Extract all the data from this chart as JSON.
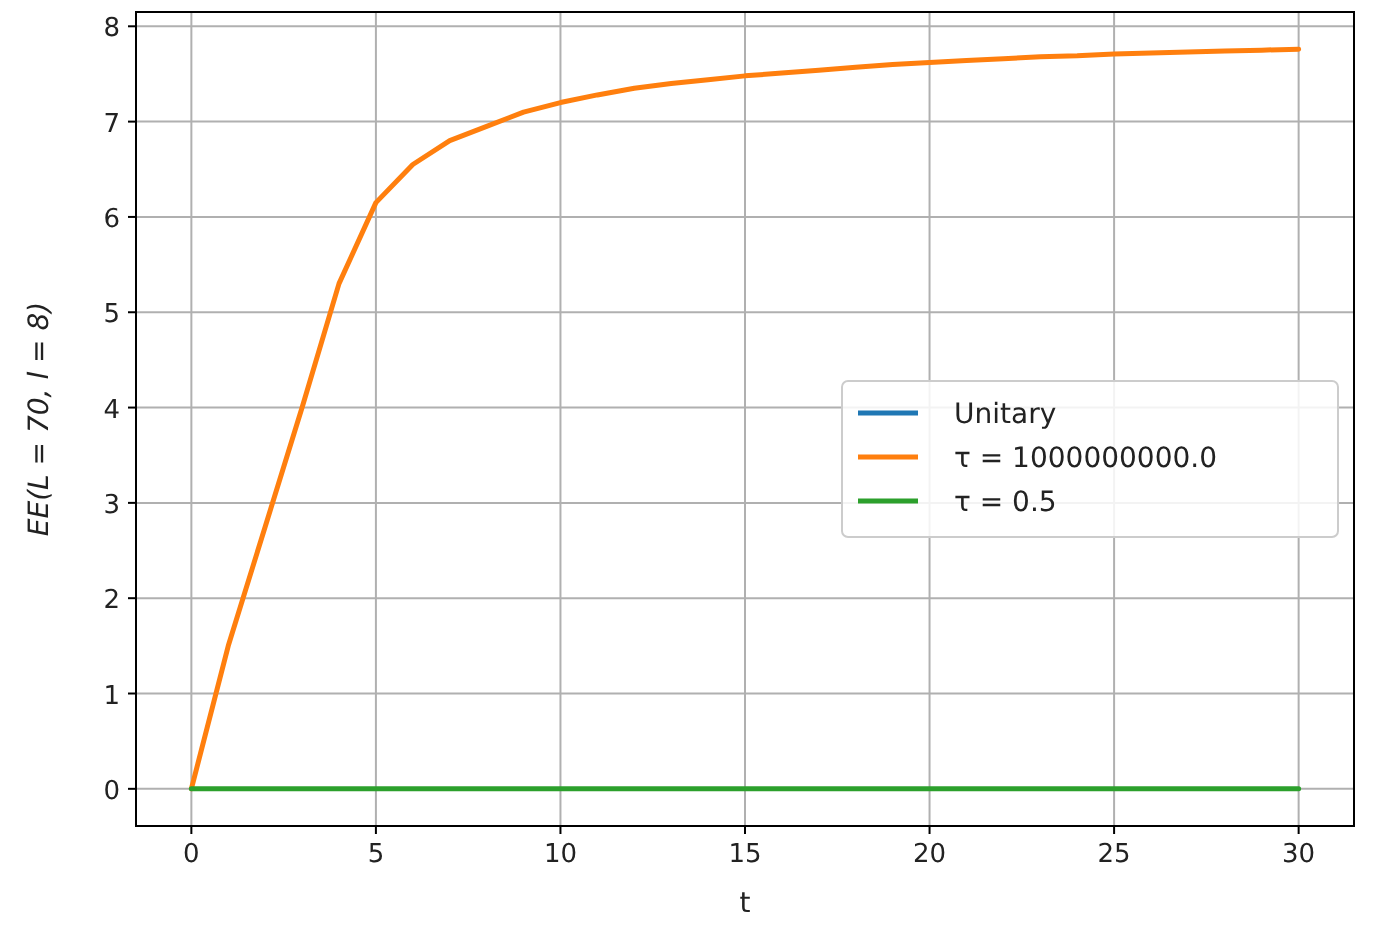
{
  "chart_data": {
    "type": "line",
    "xlabel": "t",
    "ylabel": "EE(L = 70, l = 8)",
    "x": [
      0,
      1,
      2,
      3,
      4,
      5,
      6,
      7,
      8,
      9,
      10,
      11,
      12,
      13,
      14,
      15,
      16,
      17,
      18,
      19,
      20,
      21,
      22,
      23,
      24,
      25,
      26,
      27,
      28,
      29,
      30
    ],
    "series": [
      {
        "name": "Unitary",
        "color": "#1f77b4",
        "values": [
          null,
          null,
          null,
          null,
          null,
          null,
          null,
          null,
          null,
          null,
          null,
          null,
          null,
          null,
          null,
          null,
          null,
          null,
          null,
          null,
          null,
          null,
          null,
          null,
          null,
          null,
          null,
          null,
          null,
          null,
          null
        ]
      },
      {
        "name": "τ = 1000000000.0",
        "color": "#ff7f0e",
        "values": [
          0,
          1.5,
          2.75,
          4.0,
          5.3,
          6.15,
          6.55,
          6.8,
          6.95,
          7.1,
          7.2,
          7.28,
          7.35,
          7.4,
          7.44,
          7.48,
          7.51,
          7.54,
          7.57,
          7.6,
          7.62,
          7.64,
          7.66,
          7.68,
          7.69,
          7.71,
          7.72,
          7.73,
          7.74,
          7.75,
          7.76
        ]
      },
      {
        "name": "τ = 0.5",
        "color": "#2ca02c",
        "values": [
          0,
          0,
          0,
          0,
          0,
          0,
          0,
          0,
          0,
          0,
          0,
          0,
          0,
          0,
          0,
          0,
          0,
          0,
          0,
          0,
          0,
          0,
          0,
          0,
          0,
          0,
          0,
          0,
          0,
          0,
          0
        ]
      }
    ],
    "xlim": [
      -1.5,
      31.5
    ],
    "xticks": [
      0,
      5,
      10,
      15,
      20,
      25,
      30
    ],
    "ylim": [
      -0.39,
      8.15
    ],
    "yticks": [
      0,
      1,
      2,
      3,
      4,
      5,
      6,
      7,
      8
    ],
    "grid": true,
    "legend": "center right",
    "marker": "none",
    "line_style": "solid"
  }
}
